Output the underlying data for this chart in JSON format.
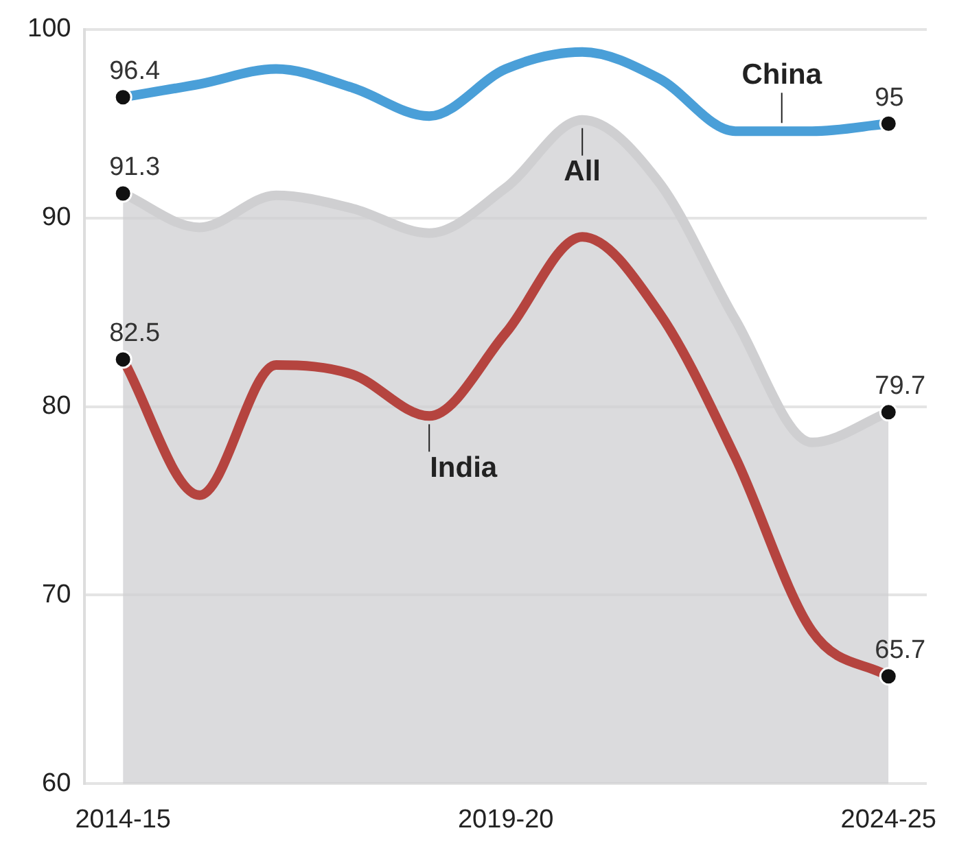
{
  "chart_data": {
    "type": "line",
    "categories": [
      "2014-15",
      null,
      null,
      null,
      null,
      "2019-20",
      null,
      null,
      null,
      null,
      "2024-25"
    ],
    "series": [
      {
        "name": "All",
        "type": "area",
        "color": "#cfcfd1",
        "values": [
          91.3,
          89.5,
          91.2,
          90.5,
          89.2,
          91.6,
          95.2,
          91.9,
          84.6,
          78.1,
          79.7
        ],
        "value_labels": [
          "91.3",
          null,
          null,
          null,
          null,
          null,
          null,
          null,
          null,
          null,
          "79.7"
        ]
      },
      {
        "name": "China",
        "color": "#4a9fd8",
        "values": [
          96.4,
          97.1,
          97.9,
          96.9,
          95.4,
          97.9,
          98.8,
          97.4,
          94.6,
          94.6,
          95
        ],
        "value_labels": [
          "96.4",
          null,
          null,
          null,
          null,
          null,
          null,
          null,
          null,
          null,
          "95"
        ]
      },
      {
        "name": "India",
        "color": "#b5443f",
        "values": [
          82.5,
          75.3,
          82.2,
          81.7,
          79.5,
          83.9,
          89,
          85,
          77.3,
          68.1,
          65.7
        ],
        "value_labels": [
          "82.5",
          null,
          null,
          null,
          null,
          null,
          null,
          null,
          null,
          null,
          "65.7"
        ]
      }
    ],
    "ylim": [
      60,
      100
    ],
    "yticks": [
      60,
      70,
      80,
      90,
      100
    ],
    "grid": "y",
    "legend": false
  }
}
